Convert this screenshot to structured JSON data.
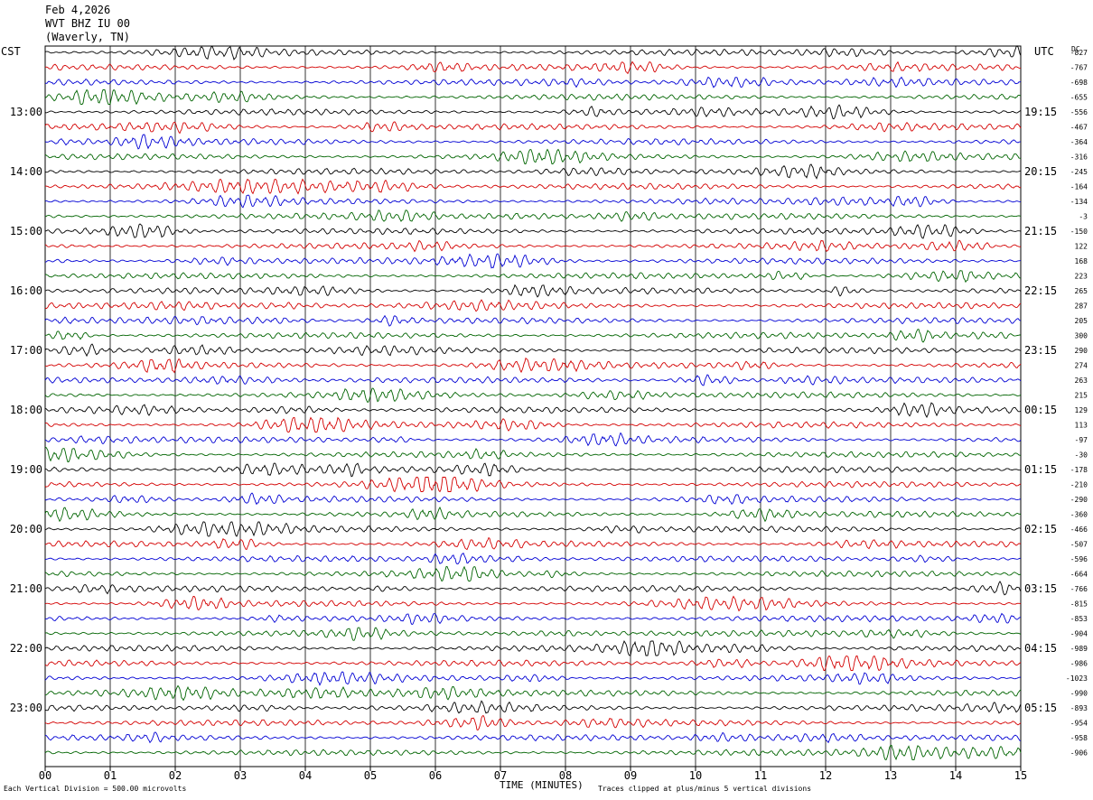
{
  "header": {
    "date": "Feb 4,2026",
    "station": "WVT BHZ IU 00",
    "location": "(Waverly, TN)"
  },
  "axes": {
    "left_label": "CST",
    "right_label": "UTC",
    "dc_label": "DC",
    "xlabel": "TIME (MINUTES)"
  },
  "footer": {
    "scale_note": "Each Vertical Division =  500.00 microvolts",
    "clip_note": "Traces clipped at plus/minus 5 vertical divisions"
  },
  "colors": {
    "trace_cycle": [
      "#000000",
      "#d40000",
      "#0000d4",
      "#006400"
    ],
    "grid": "#000000"
  },
  "chart_data": {
    "type": "line",
    "title": "",
    "x_ticks": [
      "00",
      "01",
      "02",
      "03",
      "04",
      "05",
      "06",
      "07",
      "08",
      "09",
      "10",
      "11",
      "12",
      "13",
      "14",
      "15"
    ],
    "xlim": [
      0,
      15
    ],
    "rows_per_hour": 4,
    "row_count": 48,
    "left_hour_labels": [
      "13:00",
      "14:00",
      "15:00",
      "16:00",
      "17:00",
      "18:00",
      "19:00",
      "20:00",
      "21:00",
      "22:00",
      "23:00"
    ],
    "left_hour_label_rows": [
      4,
      8,
      12,
      16,
      20,
      24,
      28,
      32,
      36,
      40,
      44
    ],
    "right_hour_labels": [
      "19:15",
      "20:15",
      "21:15",
      "22:15",
      "23:15",
      "00:15",
      "01:15",
      "02:15",
      "03:15",
      "04:15",
      "05:15"
    ],
    "dc_offsets": [
      "-827",
      "-767",
      "-698",
      "-655",
      "-556",
      "-467",
      "-364",
      "-316",
      "-245",
      "-164",
      "-134",
      "-3",
      "-150",
      "122",
      "168",
      "223",
      "265",
      "287",
      "205",
      "300",
      "290",
      "274",
      "263",
      "215",
      "129",
      "113",
      "-97",
      "-30",
      "-178",
      "-210",
      "-290",
      "-360",
      "-466",
      "-507",
      "-596",
      "-664",
      "-766",
      "-815",
      "-853",
      "-904",
      "-989",
      "-986",
      "-1023",
      "-990",
      "-893",
      "-954",
      "-958",
      "-906"
    ]
  }
}
